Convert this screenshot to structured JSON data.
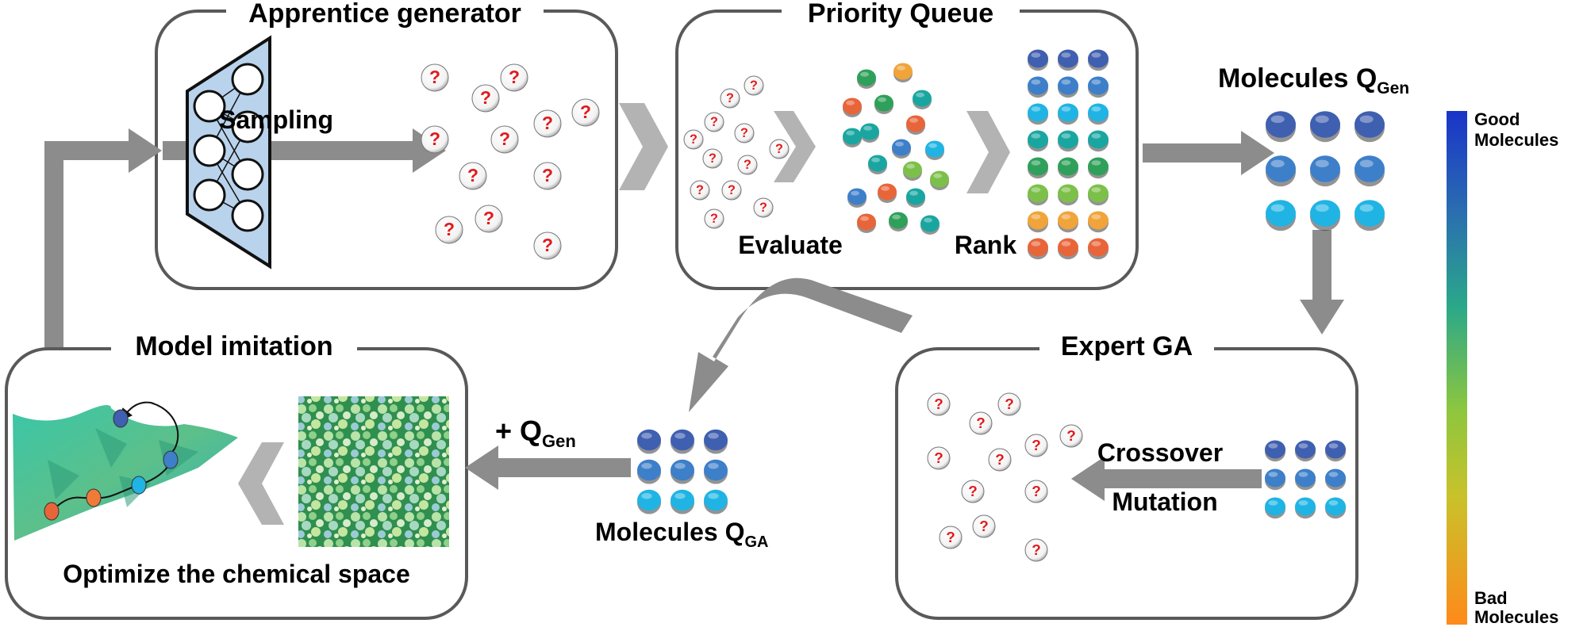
{
  "panels": {
    "apprentice": {
      "title": "Apprentice generator",
      "sampling": "Sampling"
    },
    "queue": {
      "title": "Priority Queue",
      "evaluate": "Evaluate",
      "rank": "Rank"
    },
    "expert": {
      "title": "Expert GA",
      "crossover": "Crossover",
      "mutation": "Mutation"
    },
    "imitation": {
      "title": "Model imitation",
      "caption": "Optimize the chemical space"
    }
  },
  "labels": {
    "q_gen": {
      "main": "Molecules Q",
      "sub": "Gen"
    },
    "q_ga": {
      "main": "Molecules Q",
      "sub": "GA"
    },
    "plus_q": {
      "main": "+ Q",
      "sub": "Gen"
    },
    "unknown_mark": "?"
  },
  "colorbar": {
    "top_label": [
      "Good",
      "Molecules"
    ],
    "bottom_label": [
      "Bad",
      "Molecules"
    ]
  },
  "colors": {
    "c1": "#3f5fb0",
    "c2": "#3d7fc9",
    "c3": "#1fb4e4",
    "c4": "#1aa6a0",
    "c5": "#2ea05a",
    "c6": "#7cc04a",
    "c7": "#f0a43a",
    "c8": "#e8653a",
    "arrow": "#8c8c8c",
    "chevron": "#b3b3b3",
    "question": "#e31a1c"
  }
}
